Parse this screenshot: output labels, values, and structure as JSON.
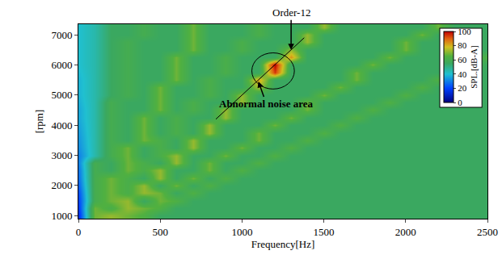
{
  "chart_data": {
    "type": "heatmap",
    "x_label": "Frequency[Hz]",
    "y_label": "[rpm]",
    "xlim": [
      0,
      2500
    ],
    "ylim": [
      900,
      7350
    ],
    "xticks": [
      0,
      500,
      1000,
      1500,
      2000,
      2500
    ],
    "yticks": [
      1000,
      2000,
      3000,
      4000,
      5000,
      6000,
      7000
    ],
    "x": [
      0,
      100,
      200,
      300,
      400,
      500,
      600,
      700,
      800,
      900,
      1000,
      1100,
      1200,
      1300,
      1400,
      1500,
      1600,
      1700,
      1800,
      1900,
      2000,
      2100,
      2200,
      2300,
      2400,
      2500
    ],
    "y": [
      1000,
      1250,
      1500,
      1750,
      2000,
      2250,
      2500,
      2750,
      3000,
      3250,
      3500,
      3750,
      4000,
      4250,
      4500,
      4750,
      5000,
      5250,
      5500,
      5750,
      6000,
      6250,
      6500,
      6750,
      7000,
      7250
    ],
    "z": [
      [
        15,
        68,
        72,
        68,
        64,
        55,
        55,
        55,
        55,
        55,
        55,
        55,
        55,
        55,
        55,
        55,
        55,
        55,
        55,
        55,
        55,
        55,
        55,
        55,
        55,
        55
      ],
      [
        18,
        68,
        62,
        72,
        68,
        64,
        55,
        55,
        55,
        55,
        55,
        55,
        55,
        55,
        55,
        55,
        55,
        55,
        55,
        55,
        55,
        55,
        55,
        55,
        55,
        55
      ],
      [
        20,
        60,
        68,
        72,
        55,
        68,
        64,
        55,
        55,
        55,
        55,
        55,
        55,
        55,
        55,
        55,
        55,
        55,
        55,
        55,
        55,
        55,
        55,
        55,
        55,
        55
      ],
      [
        22,
        60,
        68,
        62,
        72,
        68,
        55,
        64,
        55,
        55,
        55,
        55,
        55,
        55,
        55,
        55,
        55,
        55,
        55,
        55,
        55,
        55,
        55,
        55,
        55,
        55
      ],
      [
        25,
        60,
        68,
        62,
        72,
        55,
        68,
        55,
        64,
        55,
        55,
        55,
        55,
        55,
        55,
        55,
        55,
        55,
        55,
        55,
        55,
        55,
        55,
        55,
        55,
        55
      ],
      [
        27,
        60,
        68,
        62,
        55,
        72,
        55,
        68,
        55,
        64,
        55,
        55,
        55,
        55,
        55,
        55,
        55,
        55,
        55,
        55,
        55,
        55,
        55,
        55,
        55,
        55
      ],
      [
        28,
        60,
        55,
        68,
        62,
        72,
        55,
        55,
        68,
        55,
        64,
        55,
        55,
        55,
        55,
        55,
        55,
        55,
        55,
        55,
        55,
        55,
        55,
        55,
        55,
        55
      ],
      [
        30,
        60,
        55,
        68,
        62,
        55,
        72,
        55,
        68,
        55,
        55,
        64,
        55,
        55,
        55,
        55,
        55,
        55,
        55,
        55,
        55,
        55,
        55,
        55,
        55,
        55
      ],
      [
        30,
        45,
        60,
        68,
        55,
        62,
        72,
        55,
        55,
        68,
        55,
        55,
        64,
        55,
        55,
        55,
        55,
        55,
        55,
        55,
        55,
        55,
        55,
        55,
        55,
        55
      ],
      [
        32,
        45,
        60,
        68,
        55,
        62,
        55,
        72,
        55,
        55,
        68,
        55,
        55,
        64,
        55,
        55,
        55,
        55,
        55,
        55,
        55,
        55,
        55,
        55,
        55,
        55
      ],
      [
        33,
        45,
        60,
        55,
        68,
        62,
        55,
        72,
        55,
        55,
        55,
        68,
        55,
        55,
        64,
        55,
        55,
        55,
        55,
        55,
        55,
        55,
        55,
        55,
        55,
        55
      ],
      [
        34,
        45,
        60,
        55,
        68,
        55,
        62,
        55,
        72,
        55,
        55,
        68,
        55,
        55,
        55,
        64,
        55,
        55,
        55,
        55,
        55,
        55,
        55,
        55,
        55,
        55
      ],
      [
        35,
        45,
        60,
        55,
        68,
        55,
        62,
        55,
        72,
        55,
        55,
        55,
        68,
        55,
        55,
        55,
        64,
        55,
        55,
        55,
        55,
        55,
        55,
        55,
        55,
        55
      ],
      [
        36,
        45,
        60,
        55,
        68,
        55,
        62,
        55,
        55,
        72,
        55,
        55,
        55,
        68,
        55,
        55,
        55,
        64,
        55,
        55,
        55,
        55,
        55,
        55,
        55,
        55
      ],
      [
        36,
        45,
        60,
        55,
        55,
        68,
        55,
        62,
        55,
        72,
        55,
        55,
        55,
        55,
        68,
        55,
        55,
        55,
        64,
        55,
        55,
        55,
        55,
        55,
        55,
        55
      ],
      [
        37,
        45,
        60,
        55,
        55,
        68,
        55,
        62,
        55,
        55,
        72,
        55,
        55,
        55,
        68,
        55,
        55,
        55,
        55,
        64,
        55,
        55,
        55,
        55,
        55,
        55
      ],
      [
        38,
        45,
        55,
        60,
        55,
        68,
        55,
        55,
        62,
        55,
        72,
        55,
        55,
        55,
        55,
        68,
        55,
        55,
        55,
        55,
        64,
        55,
        55,
        55,
        55,
        55
      ],
      [
        38,
        45,
        55,
        60,
        55,
        68,
        55,
        55,
        62,
        55,
        55,
        74,
        55,
        55,
        55,
        55,
        68,
        55,
        55,
        55,
        55,
        64,
        55,
        55,
        55,
        55
      ],
      [
        38,
        45,
        55,
        60,
        55,
        55,
        68,
        55,
        62,
        55,
        55,
        82,
        55,
        55,
        55,
        55,
        55,
        68,
        55,
        55,
        55,
        55,
        64,
        55,
        55,
        55
      ],
      [
        39,
        45,
        55,
        60,
        55,
        55,
        68,
        55,
        55,
        62,
        55,
        55,
        94,
        55,
        55,
        55,
        55,
        68,
        55,
        55,
        55,
        55,
        55,
        64,
        55,
        55
      ],
      [
        40,
        45,
        55,
        60,
        55,
        55,
        68,
        55,
        55,
        62,
        55,
        55,
        100,
        55,
        55,
        55,
        55,
        55,
        68,
        55,
        55,
        55,
        55,
        55,
        64,
        55
      ],
      [
        40,
        45,
        55,
        60,
        55,
        55,
        68,
        55,
        55,
        62,
        55,
        55,
        55,
        84,
        55,
        55,
        55,
        55,
        55,
        68,
        55,
        55,
        55,
        55,
        55,
        64
      ],
      [
        40,
        45,
        55,
        60,
        55,
        55,
        55,
        68,
        55,
        55,
        62,
        55,
        55,
        72,
        55,
        55,
        55,
        55,
        55,
        55,
        68,
        55,
        55,
        55,
        55,
        55
      ],
      [
        40,
        45,
        55,
        60,
        55,
        55,
        55,
        68,
        55,
        55,
        62,
        55,
        55,
        55,
        72,
        55,
        55,
        55,
        55,
        55,
        68,
        55,
        55,
        55,
        55,
        55
      ],
      [
        40,
        45,
        55,
        55,
        60,
        55,
        55,
        68,
        55,
        55,
        55,
        62,
        55,
        55,
        72,
        55,
        55,
        55,
        55,
        55,
        55,
        68,
        55,
        55,
        55,
        55
      ],
      [
        40,
        45,
        55,
        55,
        60,
        55,
        55,
        68,
        55,
        55,
        55,
        62,
        55,
        55,
        55,
        72,
        55,
        55,
        55,
        55,
        55,
        55,
        68,
        55,
        55,
        55
      ]
    ],
    "colorbar": {
      "title": "SPL.[dB-A]",
      "range": [
        0,
        100
      ],
      "ticks": [
        0,
        20,
        40,
        60,
        80,
        100
      ]
    },
    "order_line": {
      "order": 12,
      "rpm": [
        4200,
        6900
      ]
    },
    "ellipse": {
      "x": [
        1060,
        1320
      ],
      "y": [
        5200,
        6400
      ]
    },
    "annotations": [
      {
        "text": "Order-12",
        "x": 1300,
        "y": 6500
      },
      {
        "text": "Abnormal noise area",
        "x": 1100,
        "y": 5450
      }
    ]
  }
}
